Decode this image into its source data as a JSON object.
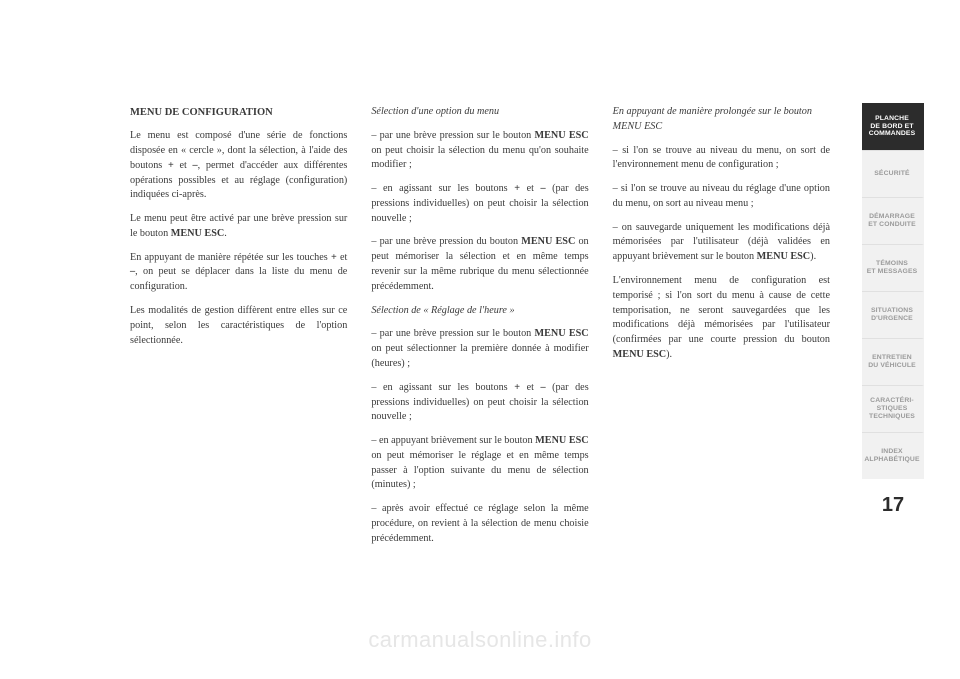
{
  "col1": {
    "heading": "MENU DE CONFIGURATION",
    "p1a": "Le menu est composé d'une série de fonctions disposée en « cercle », dont la sélection, à l'aide des boutons ",
    "p1b": "+",
    "p1c": " et ",
    "p1d": "–",
    "p1e": ", permet d'accéder aux différentes opérations possibles et au réglage (configuration) indiquées ci-après.",
    "p2a": "Le menu peut être activé par une brève pression sur le bouton ",
    "p2b": "MENU ESC",
    "p2c": ".",
    "p3a": "En appuyant de manière répétée sur les touches ",
    "p3b": "+",
    "p3c": " et ",
    "p3d": "–",
    "p3e": ", on peut se déplacer dans la liste du menu de configuration.",
    "p4": "Les modalités de gestion diffèrent entre elles sur ce point, selon les caractéristiques de l'option sélectionnée."
  },
  "col2": {
    "sub1": "Sélection d'une option du menu",
    "p1a": "– par une brève pression sur le bouton ",
    "p1b": "MENU ESC",
    "p1c": " on peut choisir la sélection du menu qu'on souhaite modifier ;",
    "p2a": "– en agissant sur les boutons ",
    "p2b": "+",
    "p2c": " et ",
    "p2d": "–",
    "p2e": " (par des pressions individuelles) on peut choisir la sélection nouvelle ;",
    "p3a": "– par une brève pression du bouton ",
    "p3b": "MENU ESC",
    "p3c": " on peut mémoriser la sélection et en même temps revenir sur la même rubrique du menu sélectionnée précédemment.",
    "sub2": "Sélection de « Réglage de l'heure »",
    "p4a": "– par une brève pression sur le bouton ",
    "p4b": "MENU ESC",
    "p4c": " on peut sélectionner la première donnée à modifier (heures) ;",
    "p5a": "– en agissant sur les boutons ",
    "p5b": "+",
    "p5c": " et ",
    "p5d": "–",
    "p5e": " (par des pressions individuelles) on peut choisir la sélection nouvelle ;",
    "p6a": "– en appuyant brièvement sur le bouton ",
    "p6b": "MENU ESC",
    "p6c": " on peut mémoriser le réglage et en même temps passer à l'option suivante du menu de sélection (minutes) ;",
    "p7": "– après avoir effectué ce réglage selon la même procédure, on revient à la sélection de menu choisie précédemment."
  },
  "col3": {
    "sub1": "En appuyant de manière prolongée sur le bouton MENU ESC",
    "p1": "– si l'on se trouve au niveau du menu, on sort de l'environnement menu de configuration ;",
    "p2": "– si l'on se trouve au niveau du réglage d'une option du menu, on sort au niveau menu ;",
    "p3a": "– on sauvegarde uniquement les modifications déjà mémorisées par l'utilisateur (déjà validées en appuyant brièvement sur le bouton ",
    "p3b": "MENU ESC",
    "p3c": ").",
    "p4a": "L'environnement menu de configuration est temporisé ; si l'on sort du menu à cause de cette temporisation, ne seront sauvegardées que les modifications déjà mémorisées par l'utilisateur (confirmées par une courte pression du bouton ",
    "p4b": "MENU ESC",
    "p4c": ")."
  },
  "tabs": [
    {
      "label1": "PLANCHE",
      "label2": "DE BORD ET",
      "label3": "COMMANDES",
      "active": true
    },
    {
      "label1": "SÉCURITÉ",
      "label2": "",
      "label3": "",
      "active": false
    },
    {
      "label1": "DÉMARRAGE",
      "label2": "ET CONDUITE",
      "label3": "",
      "active": false
    },
    {
      "label1": "TÉMOINS",
      "label2": "ET MESSAGES",
      "label3": "",
      "active": false
    },
    {
      "label1": "SITUATIONS",
      "label2": "D'URGENCE",
      "label3": "",
      "active": false
    },
    {
      "label1": "ENTRETIEN",
      "label2": "DU VÉHICULE",
      "label3": "",
      "active": false
    },
    {
      "label1": "CARACTÉRI-",
      "label2": "STIQUES",
      "label3": "TECHNIQUES",
      "active": false
    },
    {
      "label1": "INDEX",
      "label2": "ALPHABÉTIQUE",
      "label3": "",
      "active": false
    }
  ],
  "pagenum": "17",
  "watermark": "carmanualsonline.info",
  "colors": {
    "text": "#3a3a3a",
    "tab_active_bg": "#2c2c2c",
    "tab_active_fg": "#ffffff",
    "tab_inactive_bg": "#f1f1f1",
    "tab_inactive_fg": "#9a9a9a",
    "watermark": "#e6e6e6",
    "bg": "#ffffff"
  }
}
